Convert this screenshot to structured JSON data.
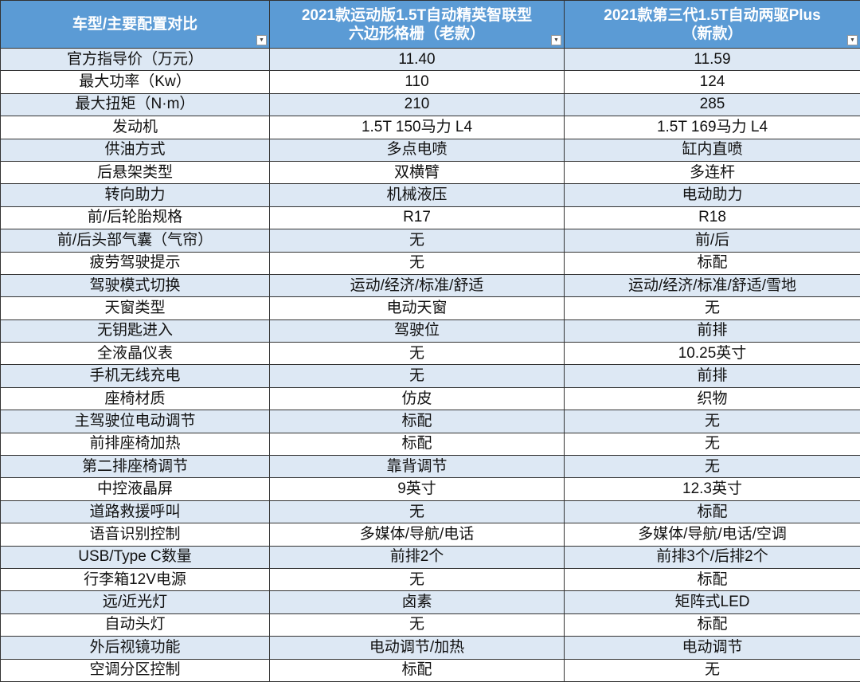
{
  "header": {
    "columns": [
      "车型/主要配置对比",
      "2021款运动版1.5T自动精英智联型\n六边形格栅（老款）",
      "2021款第三代1.5T自动两驱Plus\n（新款）"
    ],
    "filter_icon": "dropdown-arrow-icon"
  },
  "colors": {
    "header_bg": "#5b9bd5",
    "band_bg": "#dde8f4"
  },
  "rows": [
    [
      "官方指导价（万元）",
      "11.40",
      "11.59"
    ],
    [
      "最大功率（Kw）",
      "110",
      "124"
    ],
    [
      "最大扭矩（N·m）",
      "210",
      "285"
    ],
    [
      "发动机",
      "1.5T 150马力 L4",
      "1.5T 169马力 L4"
    ],
    [
      "供油方式",
      "多点电喷",
      "缸内直喷"
    ],
    [
      "后悬架类型",
      "双横臂",
      "多连杆"
    ],
    [
      "转向助力",
      "机械液压",
      "电动助力"
    ],
    [
      "前/后轮胎规格",
      "R17",
      "R18"
    ],
    [
      "前/后头部气囊（气帘）",
      "无",
      "前/后"
    ],
    [
      "疲劳驾驶提示",
      "无",
      "标配"
    ],
    [
      "驾驶模式切换",
      "运动/经济/标准/舒适",
      "运动/经济/标准/舒适/雪地"
    ],
    [
      "天窗类型",
      "电动天窗",
      "无"
    ],
    [
      "无钥匙进入",
      "驾驶位",
      "前排"
    ],
    [
      "全液晶仪表",
      "无",
      "10.25英寸"
    ],
    [
      "手机无线充电",
      "无",
      "前排"
    ],
    [
      "座椅材质",
      "仿皮",
      "织物"
    ],
    [
      "主驾驶位电动调节",
      "标配",
      "无"
    ],
    [
      "前排座椅加热",
      "标配",
      "无"
    ],
    [
      "第二排座椅调节",
      "靠背调节",
      "无"
    ],
    [
      "中控液晶屏",
      "9英寸",
      "12.3英寸"
    ],
    [
      "道路救援呼叫",
      "无",
      "标配"
    ],
    [
      "语音识别控制",
      "多媒体/导航/电话",
      "多媒体/导航/电话/空调"
    ],
    [
      "USB/Type C数量",
      "前排2个",
      "前排3个/后排2个"
    ],
    [
      "行李箱12V电源",
      "无",
      "标配"
    ],
    [
      "远/近光灯",
      "卤素",
      "矩阵式LED"
    ],
    [
      "自动头灯",
      "无",
      "标配"
    ],
    [
      "外后视镜功能",
      "电动调节/加热",
      "电动调节"
    ],
    [
      "空调分区控制",
      "标配",
      "无"
    ]
  ]
}
